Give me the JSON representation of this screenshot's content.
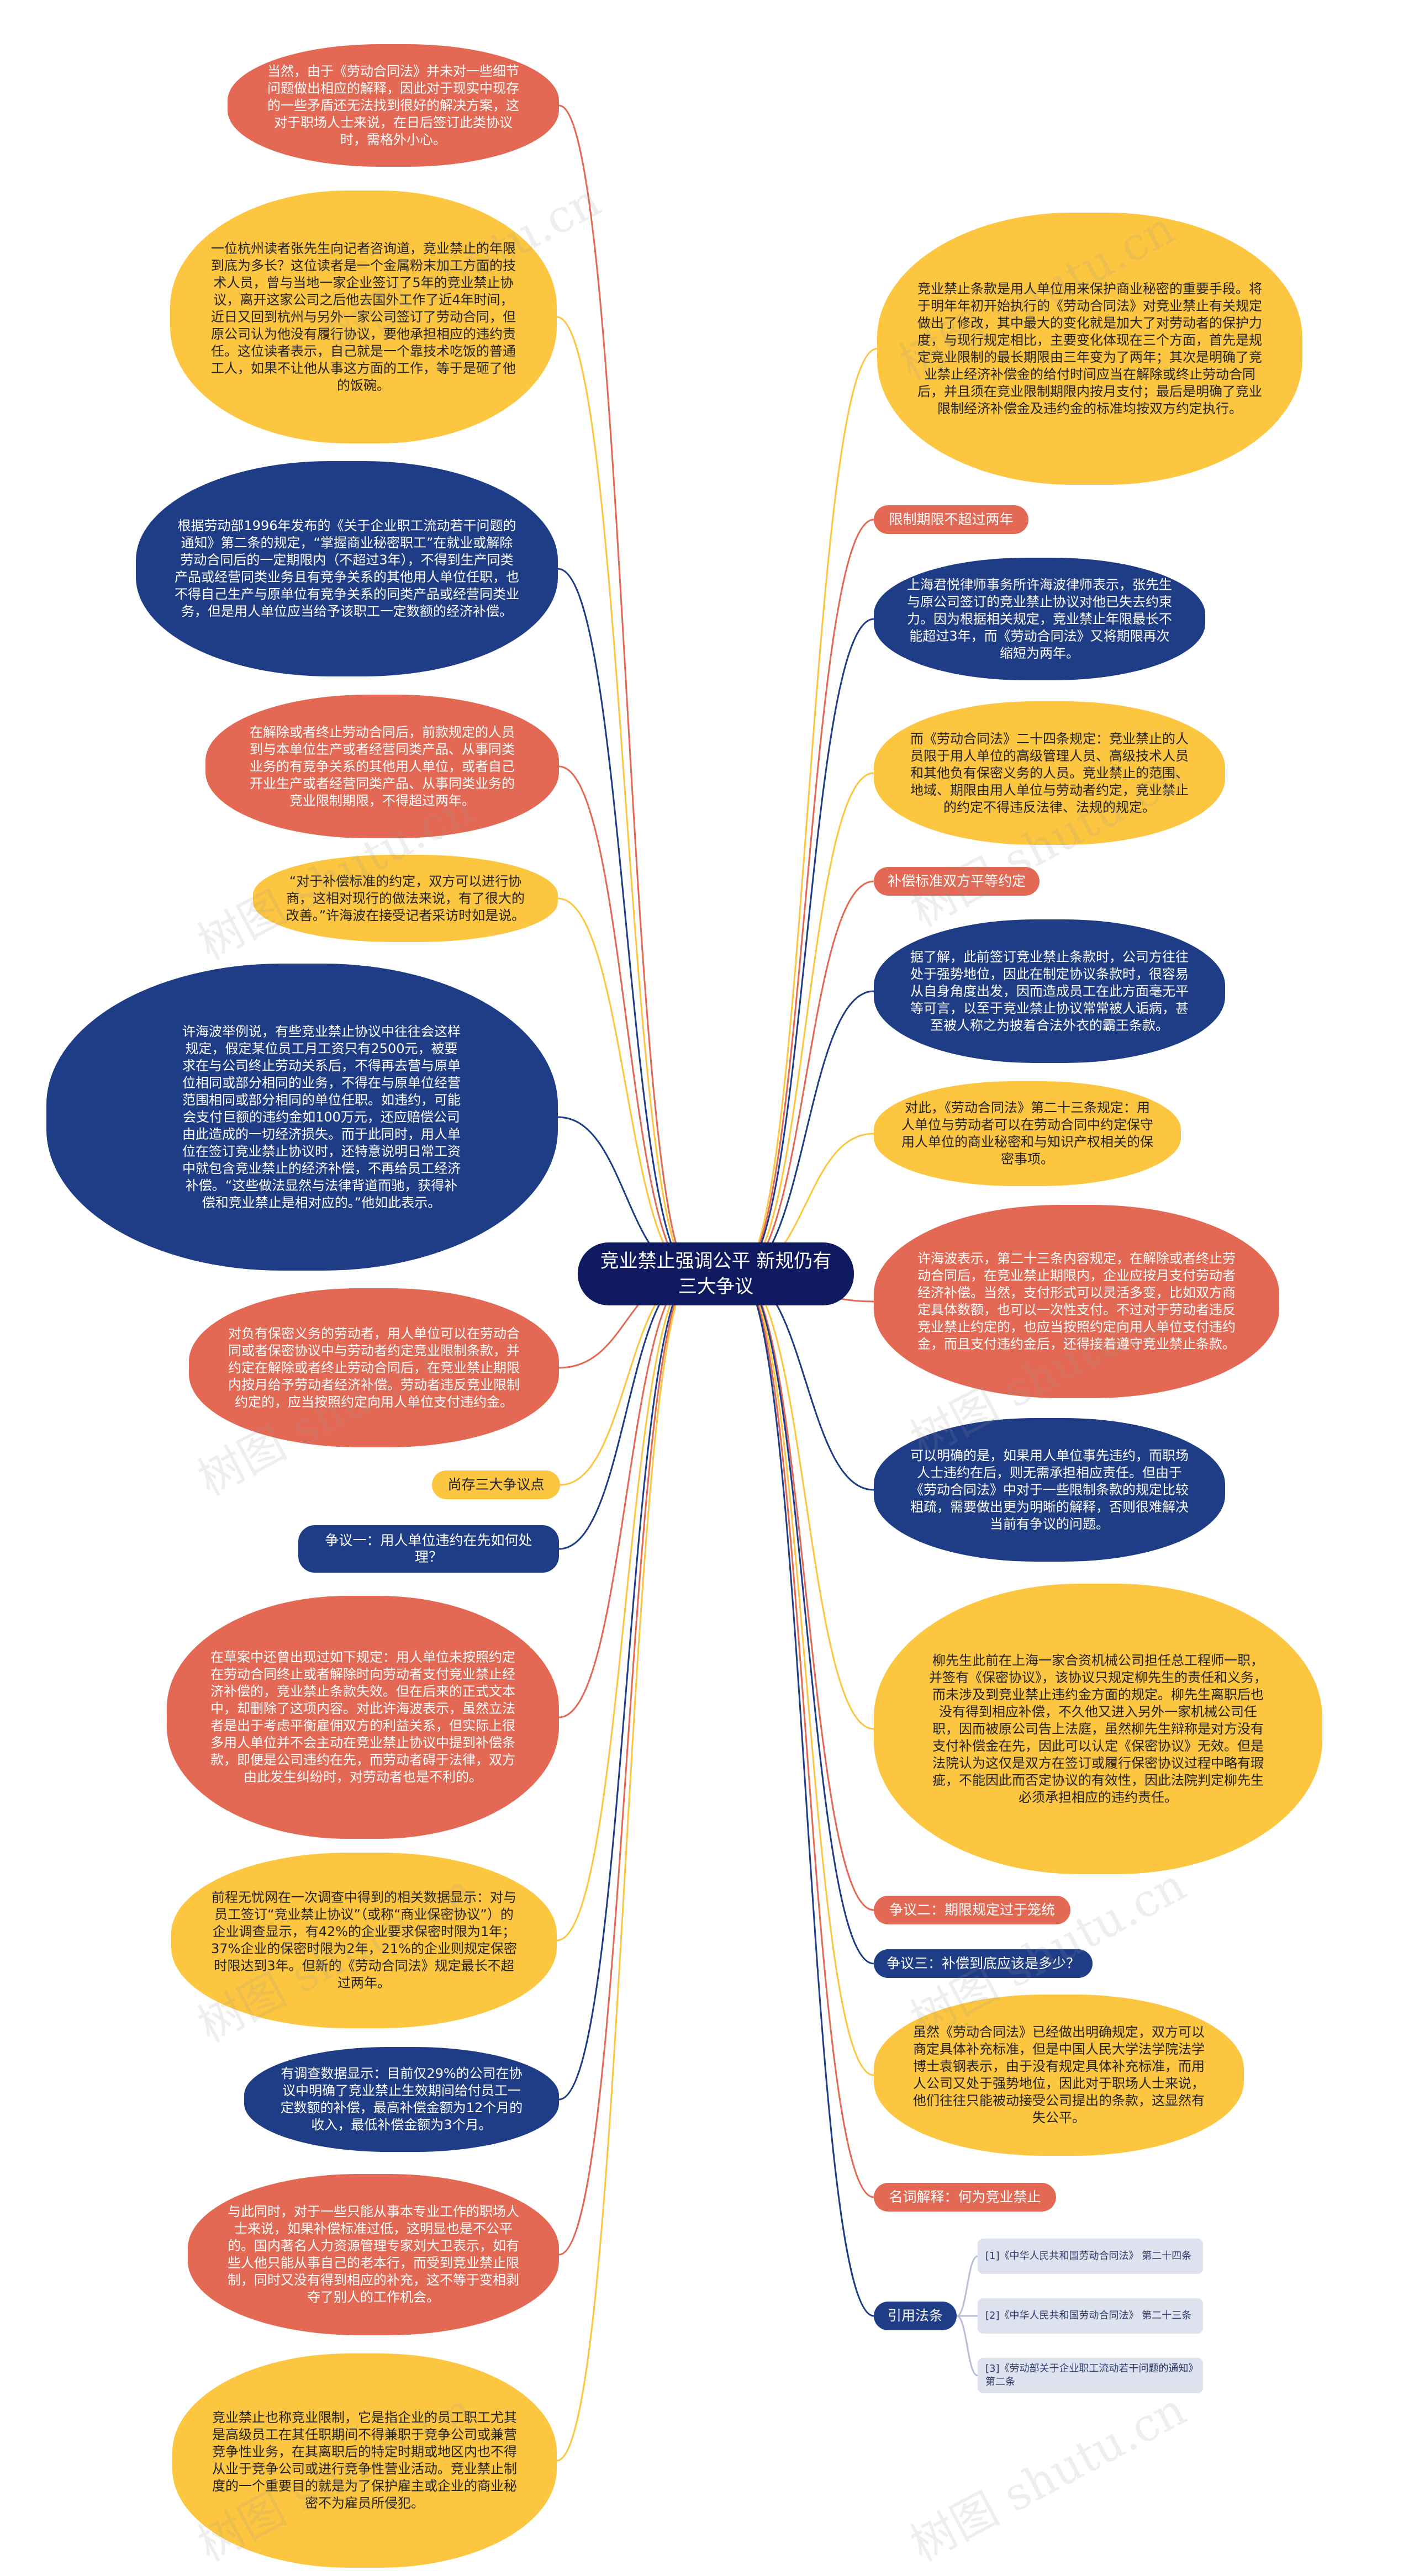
{
  "root": {
    "title": "竞业禁止强调公平 新规仍有三大争议"
  },
  "left": [
    {
      "text": "当然，由于《劳动合同法》并未对一些细节问题做出相应的解释，因此对于现实中现存的一些矛盾还无法找到很好的解决方案，这对于职场人士来说，在日后签订此类协议时，需格外小心。"
    },
    {
      "text": "一位杭州读者张先生向记者咨询道，竞业禁止的年限到底为多长？这位读者是一个金属粉末加工方面的技术人员，曾与当地一家企业签订了5年的竞业禁止协议，离开这家公司之后他去国外工作了近4年时间，近日又回到杭州与另外一家公司签订了劳动合同，但原公司认为他没有履行协议，要他承担相应的违约责任。这位读者表示，自己就是一个靠技术吃饭的普通工人，如果不让他从事这方面的工作，等于是砸了他的饭碗。"
    },
    {
      "text": "根据劳动部1996年发布的《关于企业职工流动若干问题的通知》第二条的规定，“掌握商业秘密职工”在就业或解除劳动合同后的一定期限内（不超过3年），不得到生产同类产品或经营同类业务且有竞争关系的其他用人单位任职，也不得自己生产与原单位有竞争关系的同类产品或经营同类业务，但是用人单位应当给予该职工一定数额的经济补偿。"
    },
    {
      "text": "在解除或者终止劳动合同后，前款规定的人员到与本单位生产或者经营同类产品、从事同类业务的有竞争关系的其他用人单位，或者自己开业生产或者经营同类产品、从事同类业务的竞业限制期限，不得超过两年。"
    },
    {
      "text": "“对于补偿标准的约定，双方可以进行协商，这相对现行的做法来说，有了很大的改善。”许海波在接受记者采访时如是说。"
    },
    {
      "text": "许海波举例说，有些竞业禁止协议中往往会这样规定，假定某位员工月工资只有2500元，被要求在与公司终止劳动关系后，不得再去营与原单位相同或部分相同的业务，不得在与原单位经营范围相同或部分相同的单位任职。如违约，可能会支付巨额的违约金如100万元，还应赔偿公司由此造成的一切经济损失。而于此同时，用人单位在签订竞业禁止协议时，还特意说明日常工资中就包含竞业禁止的经济补偿，不再给员工经济补偿。“这些做法显然与法律背道而驰，获得补偿和竞业禁止是相对应的。”他如此表示。"
    },
    {
      "text": "对负有保密义务的劳动者，用人单位可以在劳动合同或者保密协议中与劳动者约定竞业限制条款，并约定在解除或者终止劳动合同后，在竞业禁止期限内按月给予劳动者经济补偿。劳动者违反竞业限制约定的，应当按照约定向用人单位支付违约金。"
    },
    {
      "text": "在草案中还曾出现过如下规定：用人单位未按照约定在劳动合同终止或者解除时向劳动者支付竞业禁止经济补偿的，竞业禁止条款失效。但在后来的正式文本中，却删除了这项内容。对此许海波表示，虽然立法者是出于考虑平衡雇佣双方的利益关系，但实际上很多用人单位并不会主动在竞业禁止协议中提到补偿条款，即便是公司违约在先，而劳动者碍于法律，双方由此发生纠纷时，对劳动者也是不利的。"
    },
    {
      "text": "前程无忧网在一次调查中得到的相关数据显示：对与员工签订“竞业禁止协议”（或称“商业保密协议”）的企业调查显示，有42%的企业要求保密时限为1年；37%企业的保密时限为2年，21%的企业则规定保密时限达到3年。但新的《劳动合同法》规定最长不超过两年。"
    },
    {
      "text": "有调查数据显示：目前仅29%的公司在协议中明确了竞业禁止生效期间给付员工一定数额的补偿，最高补偿金额为12个月的收入，最低补偿金额为3个月。"
    },
    {
      "text": "与此同时，对于一些只能从事本专业工作的职场人士来说，如果补偿标准过低，这明显也是不公平的。国内著名人力资源管理专家刘大卫表示，如有些人他只能从事自己的老本行，而受到竞业禁止限制，同时又没有得到相应的补充，这不等于变相剥夺了别人的工作机会。"
    },
    {
      "text": "竞业禁止也称竞业限制，它是指企业的员工职工尤其是高级员工在其任职期间不得兼职于竞争公司或兼营竞争性业务，在其离职后的特定时期或地区内也不得从业于竞争公司或进行竞争性营业活动。竞业禁止制度的一个重要目的就是为了保护雇主或企业的商业秘密不为雇员所侵犯。"
    }
  ],
  "left_pills": [
    {
      "text": "尚存三大争议点"
    },
    {
      "text": "争议一：用人单位违约在先如何处理？"
    }
  ],
  "right": [
    {
      "text": "竞业禁止条款是用人单位用来保护商业秘密的重要手段。将于明年年初开始执行的《劳动合同法》对竞业禁止有关规定做出了修改，其中最大的变化就是加大了对劳动者的保护力度，与现行规定相比，主要变化体现在三个方面，首先是规定竞业限制的最长期限由三年变为了两年；其次是明确了竞业禁止经济补偿金的给付时间应当在解除或终止劳动合同后，并且须在竞业限制期限内按月支付；最后是明确了竞业限制经济补偿金及违约金的标准均按双方约定执行。"
    },
    {
      "text": "上海君悦律师事务所许海波律师表示，张先生与原公司签订的竞业禁止协议对他已失去约束力。因为根据相关规定，竞业禁止年限最长不能超过3年，而《劳动合同法》又将期限再次缩短为两年。"
    },
    {
      "text": "而《劳动合同法》二十四条规定：竞业禁止的人员限于用人单位的高级管理人员、高级技术人员和其他负有保密义务的人员。竞业禁止的范围、地域、期限由用人单位与劳动者约定，竞业禁止的约定不得违反法律、法规的规定。"
    },
    {
      "text": "据了解，此前签订竞业禁止条款时，公司方往往处于强势地位，因此在制定协议条款时，很容易从自身角度出发，因而造成员工在此方面毫无平等可言，以至于竞业禁止协议常常被人诟病，甚至被人称之为披着合法外衣的霸王条款。"
    },
    {
      "text": "对此，《劳动合同法》第二十三条规定：用人单位与劳动者可以在劳动合同中约定保守用人单位的商业秘密和与知识产权相关的保密事项。"
    },
    {
      "text": "许海波表示，第二十三条内容规定，在解除或者终止劳动合同后，在竞业禁止期限内，企业应按月支付劳动者经济补偿。当然，支付形式可以灵活多变，比如双方商定具体数额，也可以一次性支付。不过对于劳动者违反竞业禁止约定的，也应当按照约定向用人单位支付违约金，而且支付违约金后，还得接着遵守竞业禁止条款。"
    },
    {
      "text": "可以明确的是，如果用人单位事先违约，而职场人士违约在后，则无需承担相应责任。但由于《劳动合同法》中对于一些限制条款的规定比较粗疏，需要做出更为明晰的解释，否则很难解决当前有争议的问题。"
    },
    {
      "text": "柳先生此前在上海一家合资机械公司担任总工程师一职，并签有《保密协议》，该协议只规定柳先生的责任和义务，而未涉及到竞业禁止违约金方面的规定。柳先生离职后也没有得到相应补偿，不久他又进入另外一家机械公司任职，因而被原公司告上法庭，虽然柳先生辩称是对方没有支付补偿金在先，因此可以认定《保密协议》无效。但是法院认为这仅是双方在签订或履行保密协议过程中略有瑕疵，不能因此而否定协议的有效性，因此法院判定柳先生必须承担相应的违约责任。"
    },
    {
      "text": "虽然《劳动合同法》已经做出明确规定，双方可以商定具体补充标准，但是中国人民大学法学院法学博士袁钢表示，由于没有规定具体补充标准，而用人公司又处于强势地位，因此对于职场人士来说，他们往往只能被动接受公司提出的条款，这显然有失公平。"
    }
  ],
  "right_pills": [
    {
      "text": "限制期限不超过两年"
    },
    {
      "text": "补偿标准双方平等约定"
    },
    {
      "text": "争议二：期限规定过于笼统"
    },
    {
      "text": "争议三：补偿到底应该是多少？"
    },
    {
      "text": "名词解释：何为竞业禁止"
    },
    {
      "text": "引用法条"
    }
  ],
  "refs": [
    {
      "text": "[1]《中华人民共和国劳动合同法》 第二十四条"
    },
    {
      "text": "[2]《中华人民共和国劳动合同法》 第二十三条"
    },
    {
      "text": "[3]《劳动部关于企业职工流动若干问题的通知》第二条"
    }
  ],
  "watermark": "树图 shutu.cn"
}
